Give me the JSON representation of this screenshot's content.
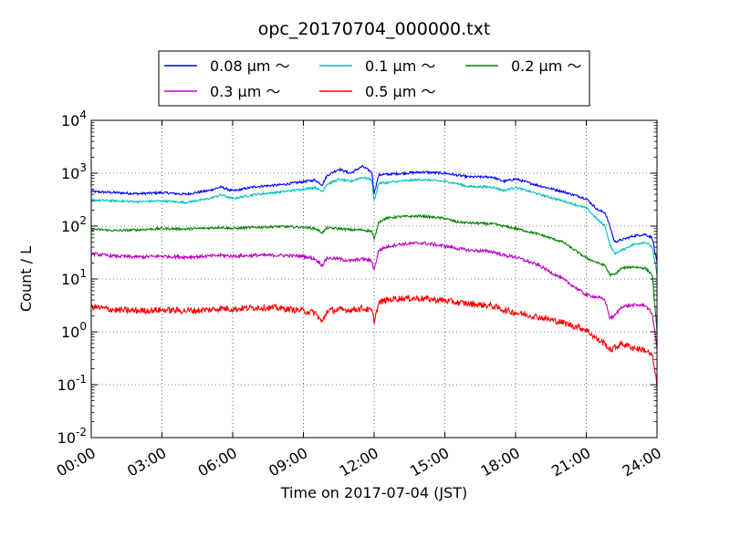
{
  "chart_data": {
    "type": "line",
    "title": "opc_20170704_000000.txt",
    "xlabel": "Time on 2017-07-04 (JST)",
    "ylabel": "Count / L",
    "y_scale": "log",
    "grid": true,
    "legend_placement": "top",
    "xlim": [
      0,
      24
    ],
    "ylim": [
      0.01,
      10000
    ],
    "x_ticks": [
      0,
      3,
      6,
      9,
      12,
      15,
      18,
      21,
      24
    ],
    "x_tick_labels": [
      "00:00",
      "03:00",
      "06:00",
      "09:00",
      "12:00",
      "15:00",
      "18:00",
      "21:00",
      "24:00"
    ],
    "y_ticks": [
      0.01,
      0.1,
      1,
      10,
      100,
      1000,
      10000
    ],
    "y_tick_labels": [
      {
        "base": "10",
        "exp": "-2"
      },
      {
        "base": "10",
        "exp": "-1"
      },
      {
        "base": "10",
        "exp": "0"
      },
      {
        "base": "10",
        "exp": "1"
      },
      {
        "base": "10",
        "exp": "2"
      },
      {
        "base": "10",
        "exp": "3"
      },
      {
        "base": "10",
        "exp": "4"
      }
    ],
    "x_hours": [
      0,
      1,
      2,
      3,
      4,
      5,
      5.5,
      6,
      7,
      8,
      9,
      9.5,
      9.8,
      10,
      10.5,
      11,
      11.5,
      11.9,
      12.0,
      12.2,
      12.5,
      13,
      14,
      15,
      15.5,
      16,
      17,
      17.5,
      18,
      19,
      20,
      21,
      21.5,
      21.8,
      22.0,
      22.2,
      22.5,
      23,
      23.5,
      23.8,
      24
    ],
    "series": [
      {
        "name": "0.08 μm ～",
        "color": "#0000ff",
        "values": [
          450,
          430,
          410,
          430,
          400,
          470,
          550,
          460,
          560,
          600,
          690,
          740,
          600,
          900,
          1200,
          1000,
          1350,
          1050,
          420,
          930,
          950,
          980,
          1050,
          1000,
          920,
          850,
          850,
          700,
          780,
          580,
          450,
          330,
          200,
          180,
          100,
          50,
          55,
          65,
          70,
          60,
          20
        ]
      },
      {
        "name": "0.1 μm ～",
        "color": "#00bfbf",
        "values": [
          310,
          300,
          290,
          300,
          280,
          330,
          390,
          330,
          400,
          440,
          500,
          540,
          450,
          620,
          760,
          700,
          840,
          750,
          300,
          650,
          660,
          700,
          760,
          700,
          640,
          560,
          550,
          470,
          540,
          400,
          300,
          220,
          130,
          100,
          45,
          30,
          35,
          45,
          50,
          40,
          12
        ]
      },
      {
        "name": "0.2 μm ～",
        "color": "#008000",
        "values": [
          88,
          82,
          85,
          90,
          88,
          92,
          95,
          90,
          95,
          98,
          95,
          90,
          75,
          92,
          90,
          85,
          85,
          80,
          55,
          120,
          140,
          150,
          155,
          140,
          120,
          115,
          110,
          100,
          90,
          70,
          50,
          25,
          20,
          18,
          12,
          12,
          16,
          17,
          16,
          12,
          1
        ]
      },
      {
        "name": "0.3 μm ～",
        "color": "#bf00bf",
        "values": [
          30,
          27,
          26,
          27,
          26,
          27,
          28,
          27,
          28,
          28,
          27,
          24,
          18,
          25,
          24,
          22,
          24,
          22,
          15,
          35,
          40,
          45,
          48,
          42,
          38,
          35,
          33,
          28,
          26,
          18,
          10,
          5,
          4.5,
          4,
          1.8,
          2,
          3,
          3.2,
          3.2,
          2.2,
          0.5
        ]
      },
      {
        "name": "0.5 μm ～",
        "color": "#ff0000",
        "values": [
          3,
          2.6,
          2.5,
          2.6,
          2.5,
          2.6,
          2.8,
          2.7,
          2.9,
          2.8,
          2.5,
          2.3,
          1.5,
          2.5,
          2.6,
          2.6,
          2.8,
          2.5,
          1.6,
          3.5,
          4,
          4.3,
          4.3,
          3.9,
          3.6,
          3.4,
          3.1,
          2.6,
          2.3,
          1.9,
          1.5,
          1.1,
          0.7,
          0.6,
          0.45,
          0.5,
          0.6,
          0.5,
          0.45,
          0.35,
          0.1
        ]
      }
    ]
  }
}
